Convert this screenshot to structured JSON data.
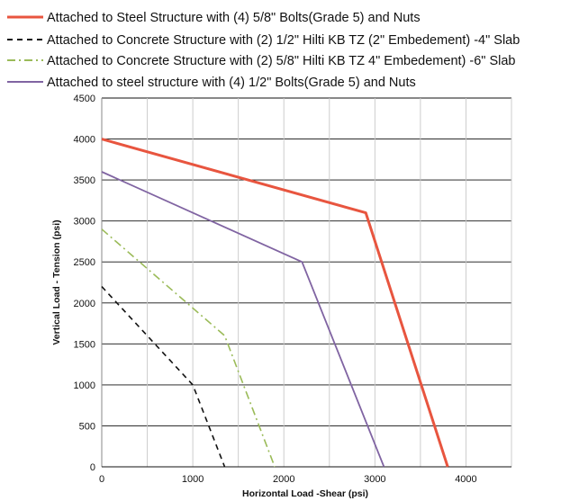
{
  "chart_data": {
    "type": "line",
    "title": "",
    "xlabel": "Horizontal Load -Shear (psi)",
    "ylabel": "Vertical Load - Tension (psi)",
    "xlim": [
      0,
      4500
    ],
    "ylim": [
      0,
      4500
    ],
    "xticks": [
      0,
      1000,
      2000,
      3000,
      4000
    ],
    "yticks": [
      0,
      500,
      1000,
      1500,
      2000,
      2500,
      3000,
      3500,
      4000,
      4500
    ],
    "grid": true,
    "legend_position": "top",
    "series": [
      {
        "name": "Attached to Steel Structure  with (4) 5/8\" Bolts(Grade 5) and Nuts",
        "color": "#e8553f",
        "style": "solid",
        "points": [
          [
            0,
            4000
          ],
          [
            2900,
            3100
          ],
          [
            3800,
            0
          ]
        ]
      },
      {
        "name": "Attached to Concrete Structure  with (2) 1/2\" Hilti KB TZ (2\" Embedement) -4\" Slab",
        "color": "#111111",
        "style": "dashed",
        "points": [
          [
            0,
            2200
          ],
          [
            1000,
            1000
          ],
          [
            1350,
            0
          ]
        ]
      },
      {
        "name": "Attached to Concrete Structure  with (2) 5/8\" Hilti KB TZ 4\" Embedement) -6\" Slab",
        "color": "#9bbb59",
        "style": "dashdot",
        "points": [
          [
            0,
            2900
          ],
          [
            1350,
            1600
          ],
          [
            1900,
            0
          ]
        ]
      },
      {
        "name": "Attached to steel structure  with (4) 1/2\" Bolts(Grade 5) and Nuts",
        "color": "#8064a2",
        "style": "solid",
        "points": [
          [
            0,
            3600
          ],
          [
            2200,
            2500
          ],
          [
            3100,
            0
          ]
        ]
      }
    ]
  }
}
